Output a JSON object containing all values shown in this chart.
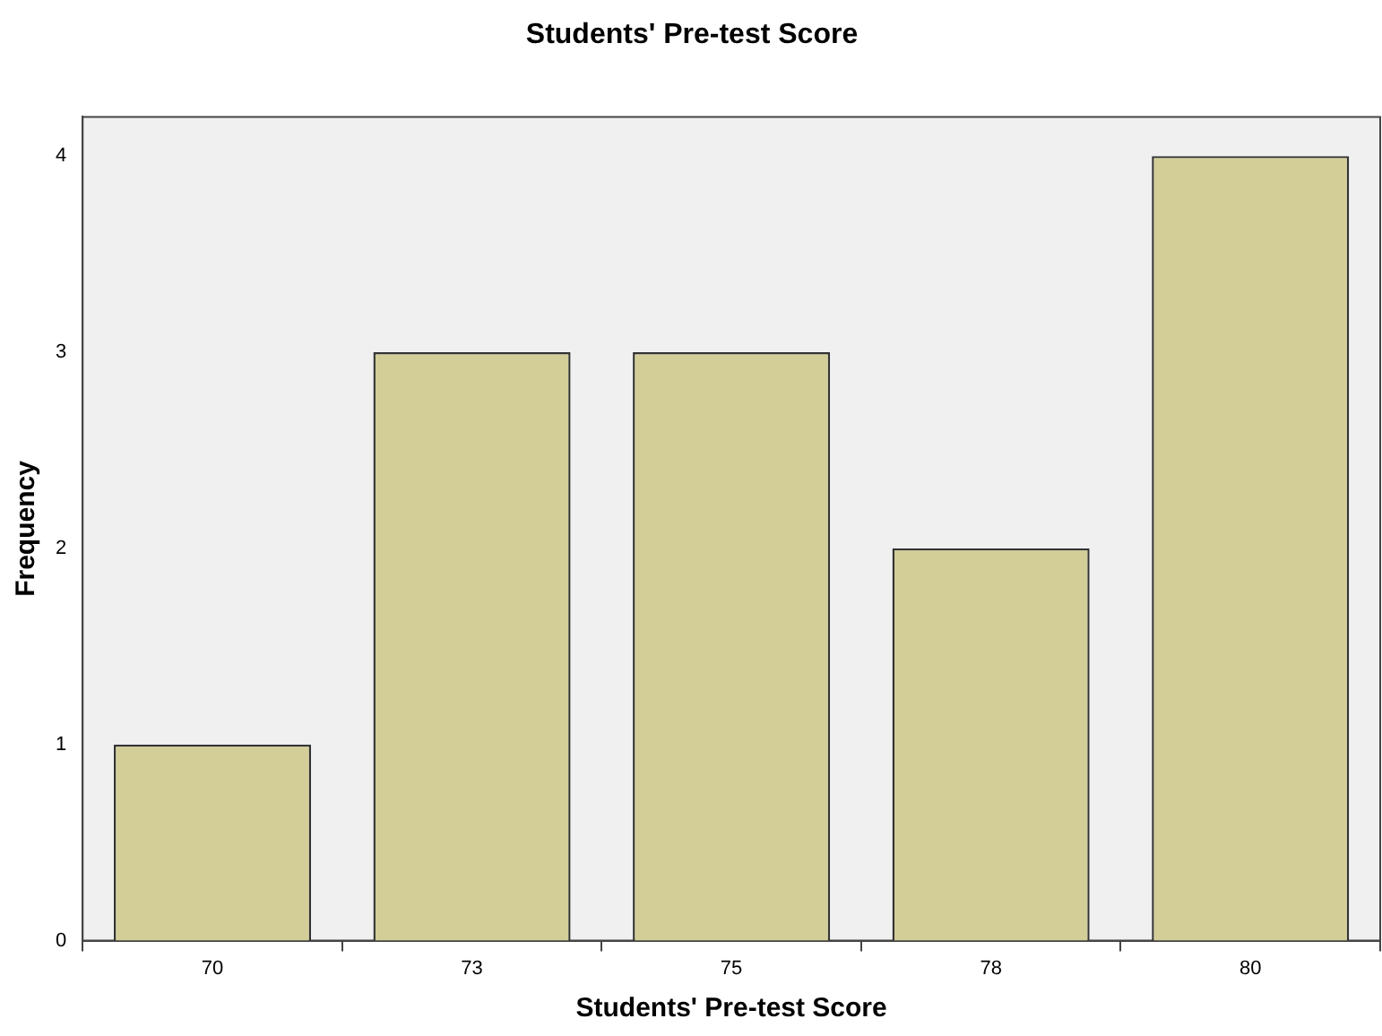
{
  "chart_data": {
    "type": "bar",
    "title": "Students' Pre-test Score",
    "xlabel": "Students' Pre-test Score",
    "ylabel": "Frequency",
    "categories": [
      "70",
      "73",
      "75",
      "78",
      "80"
    ],
    "values": [
      1,
      3,
      3,
      2,
      4
    ],
    "color": "#d3ce97",
    "ylim": [
      0,
      4.2
    ],
    "yticks": [
      0,
      1,
      2,
      3,
      4
    ],
    "grid": false,
    "legend": false
  }
}
